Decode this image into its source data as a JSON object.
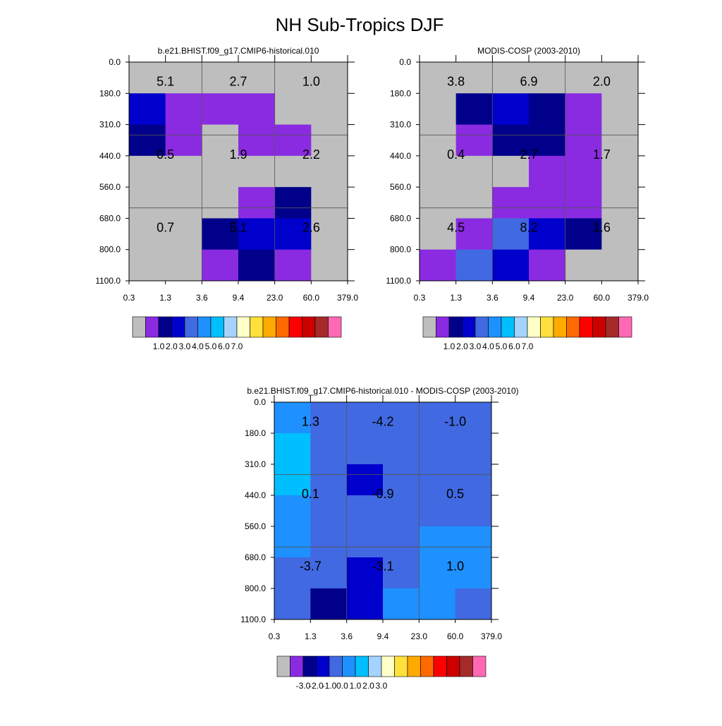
{
  "page": {
    "title": "NH Sub-Tropics DJF"
  },
  "palette": {
    "missing": "#BEBEBE",
    "colors": [
      "#8A2BE2",
      "#00008B",
      "#0000CD",
      "#4169E1",
      "#1E90FF",
      "#00BFFF",
      "#A4D3FF",
      "#FFFFC8",
      "#FFE03C",
      "#FFAA00",
      "#FF6A00",
      "#FF0000",
      "#CD0000",
      "#A52A2A",
      "#FF69B4"
    ]
  },
  "chart_data": [
    {
      "type": "heatmap",
      "title": "b.e21.BHIST.f09_g17.CMIP6-historical.010",
      "x_tick_labels": [
        "0.3",
        "1.3",
        "3.6",
        "9.4",
        "23.0",
        "60.0",
        "379.0"
      ],
      "y_tick_labels": [
        "0.0",
        "180.0",
        "310.0",
        "440.0",
        "560.0",
        "680.0",
        "800.0",
        "1100.0"
      ],
      "cells": [
        [
          -99,
          -99,
          -99,
          -99,
          -99,
          -99
        ],
        [
          2.1,
          0.8,
          0.6,
          0.6,
          -99,
          -99
        ],
        [
          1.6,
          0.6,
          -99,
          0.7,
          0.7,
          -99
        ],
        [
          -99,
          -99,
          -99,
          -99,
          -99,
          -99
        ],
        [
          -99,
          -99,
          -99,
          0.5,
          1.4,
          -99
        ],
        [
          -99,
          -99,
          1.5,
          2.3,
          2.1,
          -99
        ],
        [
          -99,
          -99,
          0.6,
          1.6,
          0.7,
          -99
        ]
      ],
      "box_values": [
        "5.1",
        "2.7",
        "1.0",
        "0.5",
        "1.9",
        "2.2",
        "0.7",
        "5.1",
        "2.6"
      ],
      "colorbar_labels": [
        "1.0",
        "2.0",
        "3.0",
        "4.0",
        "5.0",
        "6.0",
        "7.0"
      ]
    },
    {
      "type": "heatmap",
      "title": "MODIS-COSP (2003-2010)",
      "x_tick_labels": [
        "0.3",
        "1.3",
        "3.6",
        "9.4",
        "23.0",
        "60.0",
        "379.0"
      ],
      "y_tick_labels": [
        "0.0",
        "180.0",
        "310.0",
        "440.0",
        "560.0",
        "680.0",
        "800.0",
        "1100.0"
      ],
      "cells": [
        [
          -99,
          -99,
          -99,
          -99,
          -99,
          -99
        ],
        [
          -99,
          1.5,
          2.7,
          1.6,
          0.6,
          -99
        ],
        [
          -99,
          0.6,
          1.8,
          1.6,
          0.8,
          -99
        ],
        [
          -99,
          -99,
          -99,
          0.7,
          0.9,
          -99
        ],
        [
          -99,
          -99,
          0.7,
          0.9,
          0.9,
          -99
        ],
        [
          -99,
          0.6,
          3.2,
          2.9,
          1.5,
          -99
        ],
        [
          0.6,
          3.4,
          2.8,
          0.8,
          -99,
          -99
        ]
      ],
      "box_values": [
        "3.8",
        "6.9",
        "2.0",
        "0.4",
        "2.7",
        "1.7",
        "4.5",
        "8.2",
        "1.6"
      ],
      "colorbar_labels": [
        "1.0",
        "2.0",
        "3.0",
        "4.0",
        "5.0",
        "6.0",
        "7.0"
      ]
    },
    {
      "type": "heatmap",
      "title": "b.e21.BHIST.f09_g17.CMIP6-historical.010 - MODIS-COSP (2003-2010)",
      "x_tick_labels": [
        "0.3",
        "1.3",
        "3.6",
        "9.4",
        "23.0",
        "60.0",
        "379.0"
      ],
      "y_tick_labels": [
        "0.0",
        "180.0",
        "310.0",
        "440.0",
        "560.0",
        "680.0",
        "800.0",
        "1100.0"
      ],
      "cells": [
        [
          0.2,
          -0.2,
          -0.2,
          -0.2,
          -0.2,
          -0.2
        ],
        [
          1.6,
          -0.6,
          -0.2,
          -0.6,
          -0.2,
          -0.2
        ],
        [
          1.6,
          -0.2,
          -1.4,
          -0.6,
          -0.2,
          -0.2
        ],
        [
          0.2,
          -0.2,
          -0.2,
          -0.2,
          -0.2,
          -0.2
        ],
        [
          0.2,
          -0.2,
          -0.2,
          -0.2,
          0.6,
          0.2
        ],
        [
          -0.2,
          -0.6,
          -1.8,
          -0.2,
          0.6,
          0.2
        ],
        [
          -0.6,
          -2.4,
          -1.8,
          0.2,
          0.2,
          -0.2
        ]
      ],
      "box_values": [
        "1.3",
        "-4.2",
        "-1.0",
        "0.1",
        "-0.9",
        "0.5",
        "-3.7",
        "-3.1",
        "1.0"
      ],
      "colorbar_labels": [
        "-3.0",
        "-2.0",
        "-1.0",
        "0.0",
        "1.0",
        "2.0",
        "3.0"
      ]
    }
  ]
}
